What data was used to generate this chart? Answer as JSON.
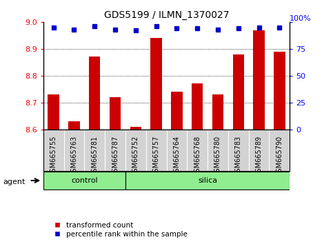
{
  "title": "GDS5199 / ILMN_1370027",
  "samples": [
    "GSM665755",
    "GSM665763",
    "GSM665781",
    "GSM665787",
    "GSM665752",
    "GSM665757",
    "GSM665764",
    "GSM665768",
    "GSM665780",
    "GSM665783",
    "GSM665789",
    "GSM665790"
  ],
  "transformed_counts": [
    8.73,
    8.63,
    8.87,
    8.72,
    8.61,
    8.94,
    8.74,
    8.77,
    8.73,
    8.88,
    8.97,
    8.89
  ],
  "percentile_ranks": [
    95,
    93,
    96,
    93,
    92,
    96,
    94,
    94,
    93,
    94,
    95,
    95
  ],
  "groups": [
    "control",
    "control",
    "control",
    "control",
    "silica",
    "silica",
    "silica",
    "silica",
    "silica",
    "silica",
    "silica",
    "silica"
  ],
  "bar_color": "#CC0000",
  "dot_color": "#0000CC",
  "ylim_left": [
    8.6,
    9.0
  ],
  "ylim_right": [
    0,
    100
  ],
  "yticks_left": [
    8.6,
    8.7,
    8.8,
    8.9,
    9.0
  ],
  "yticks_right": [
    0,
    25,
    50,
    75,
    100
  ],
  "grid_ticks": [
    8.7,
    8.8,
    8.9
  ],
  "background_color": "#ffffff",
  "plot_bg_color": "#ffffff",
  "tick_area_color": "#d3d3d3",
  "group_color": "#90EE90",
  "legend_items": [
    "transformed count",
    "percentile rank within the sample"
  ],
  "legend_colors": [
    "#CC0000",
    "#0000CC"
  ]
}
